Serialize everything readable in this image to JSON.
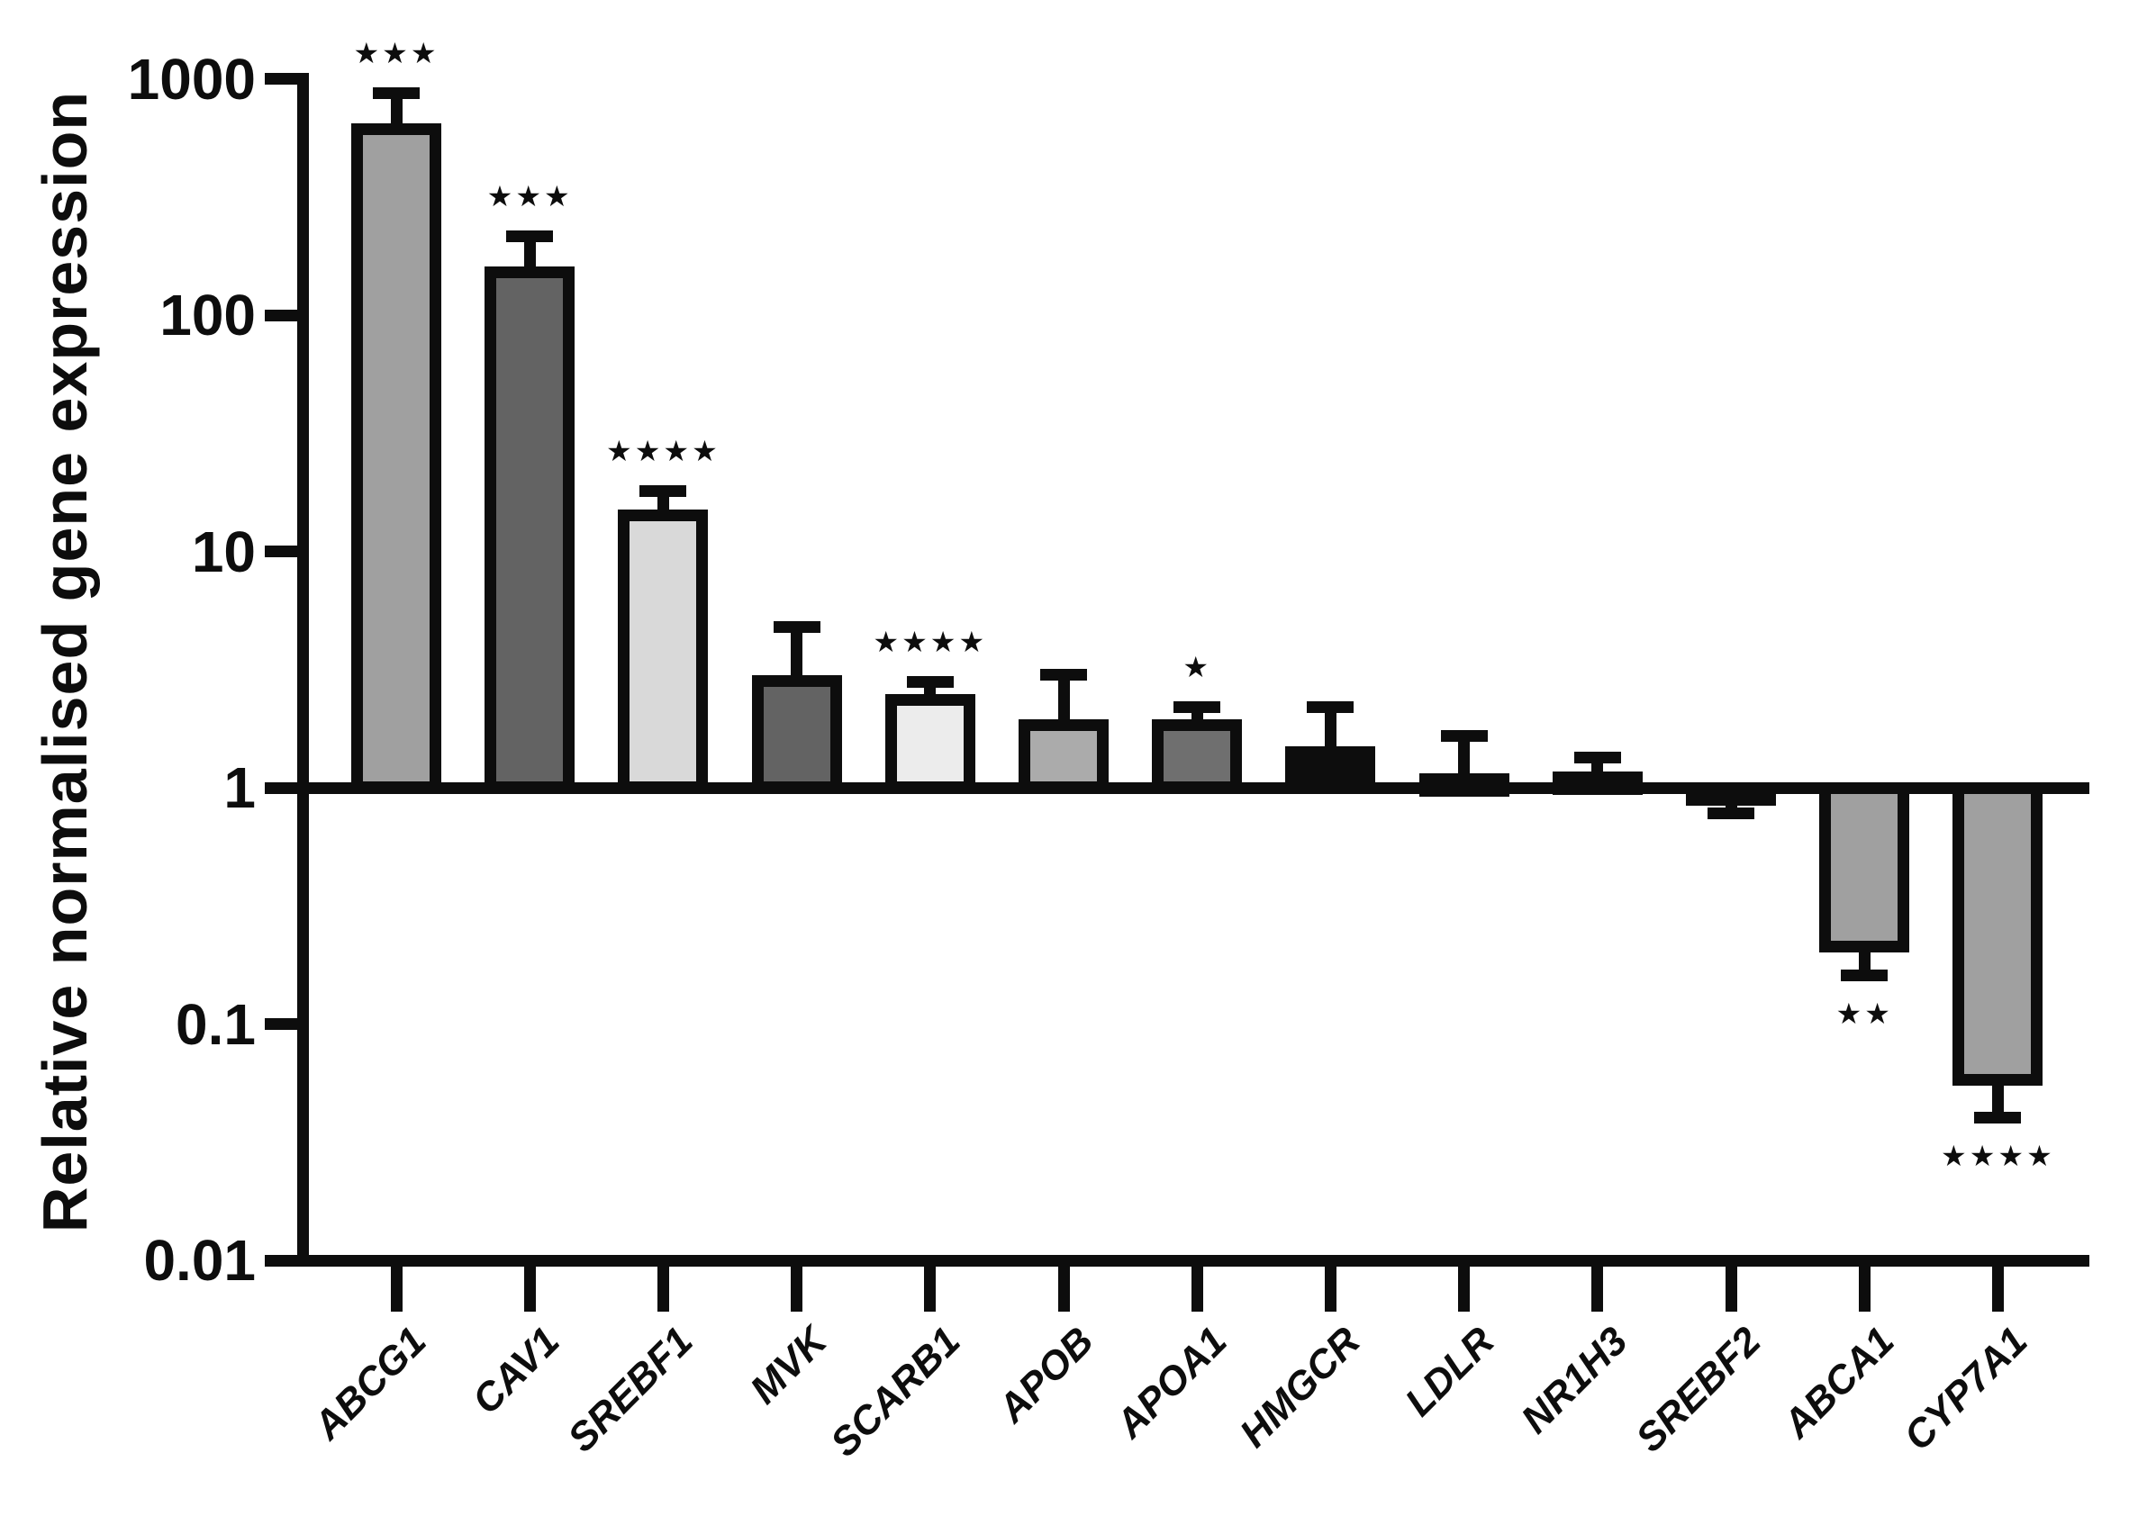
{
  "figure": {
    "background": "#ffffff",
    "line_color": "#0d0d0d"
  },
  "chart_data": {
    "type": "bar",
    "title": "",
    "ylabel": "Relative normalised gene expression",
    "xlabel": "",
    "y_scale": "log10",
    "ylim": [
      0.01,
      1000
    ],
    "baseline_value": 1,
    "grid": false,
    "legend": null,
    "y_ticks": [
      {
        "label": "1000",
        "value": 1000
      },
      {
        "label": "100",
        "value": 100
      },
      {
        "label": "10",
        "value": 10
      },
      {
        "label": "1",
        "value": 1
      },
      {
        "label": "0.1",
        "value": 0.1
      },
      {
        "label": "0.01",
        "value": 0.01
      }
    ],
    "categories": [
      "ABCG1",
      "CAV1",
      "SREBF1",
      "MVK",
      "SCARB1",
      "APOB",
      "APOA1",
      "HMGCR",
      "LDLR",
      "NR1H3",
      "SREBF2",
      "ABCA1",
      "CYP7A1"
    ],
    "bars": [
      {
        "gene": "ABCG1",
        "value": 650,
        "error_extent": 870,
        "significance": "***",
        "fill": "#a0a0a0"
      },
      {
        "gene": "CAV1",
        "value": 160,
        "error_extent": 215,
        "significance": "***",
        "fill": "#636363"
      },
      {
        "gene": "SREBF1",
        "value": 15,
        "error_extent": 18,
        "significance": "****",
        "fill": "#d9d9d9"
      },
      {
        "gene": "MVK",
        "value": 3.0,
        "error_extent": 4.8,
        "significance": "",
        "fill": "#636363"
      },
      {
        "gene": "SCARB1",
        "value": 2.5,
        "error_extent": 2.8,
        "significance": "****",
        "fill": "#ececec"
      },
      {
        "gene": "APOB",
        "value": 1.95,
        "error_extent": 3.0,
        "significance": "",
        "fill": "#ababab"
      },
      {
        "gene": "APOA1",
        "value": 1.95,
        "error_extent": 2.2,
        "significance": "*",
        "fill": "#6f6f6f"
      },
      {
        "gene": "HMGCR",
        "value": 1.5,
        "error_extent": 2.2,
        "significance": "",
        "fill": "#0d0d0d"
      },
      {
        "gene": "LDLR",
        "value": 1.15,
        "error_extent": 1.65,
        "significance": "",
        "fill": "#0d0d0d"
      },
      {
        "gene": "NR1H3",
        "value": 1.17,
        "error_extent": 1.34,
        "significance": "",
        "fill": "#0d0d0d"
      },
      {
        "gene": "SREBF2",
        "value": 0.88,
        "error_extent": 0.78,
        "significance": "",
        "fill": "#0d0d0d"
      },
      {
        "gene": "ABCA1",
        "value": 0.2,
        "error_extent": 0.16,
        "significance": "**",
        "fill": "#a0a0a0"
      },
      {
        "gene": "CYP7A1",
        "value": 0.055,
        "error_extent": 0.04,
        "significance": "****",
        "fill": "#a0a0a0"
      }
    ],
    "notes": "Log-scale column graph; bars rise or fall from baseline 1; error bars extend away from baseline; significance stars placed beyond error bar tips."
  }
}
